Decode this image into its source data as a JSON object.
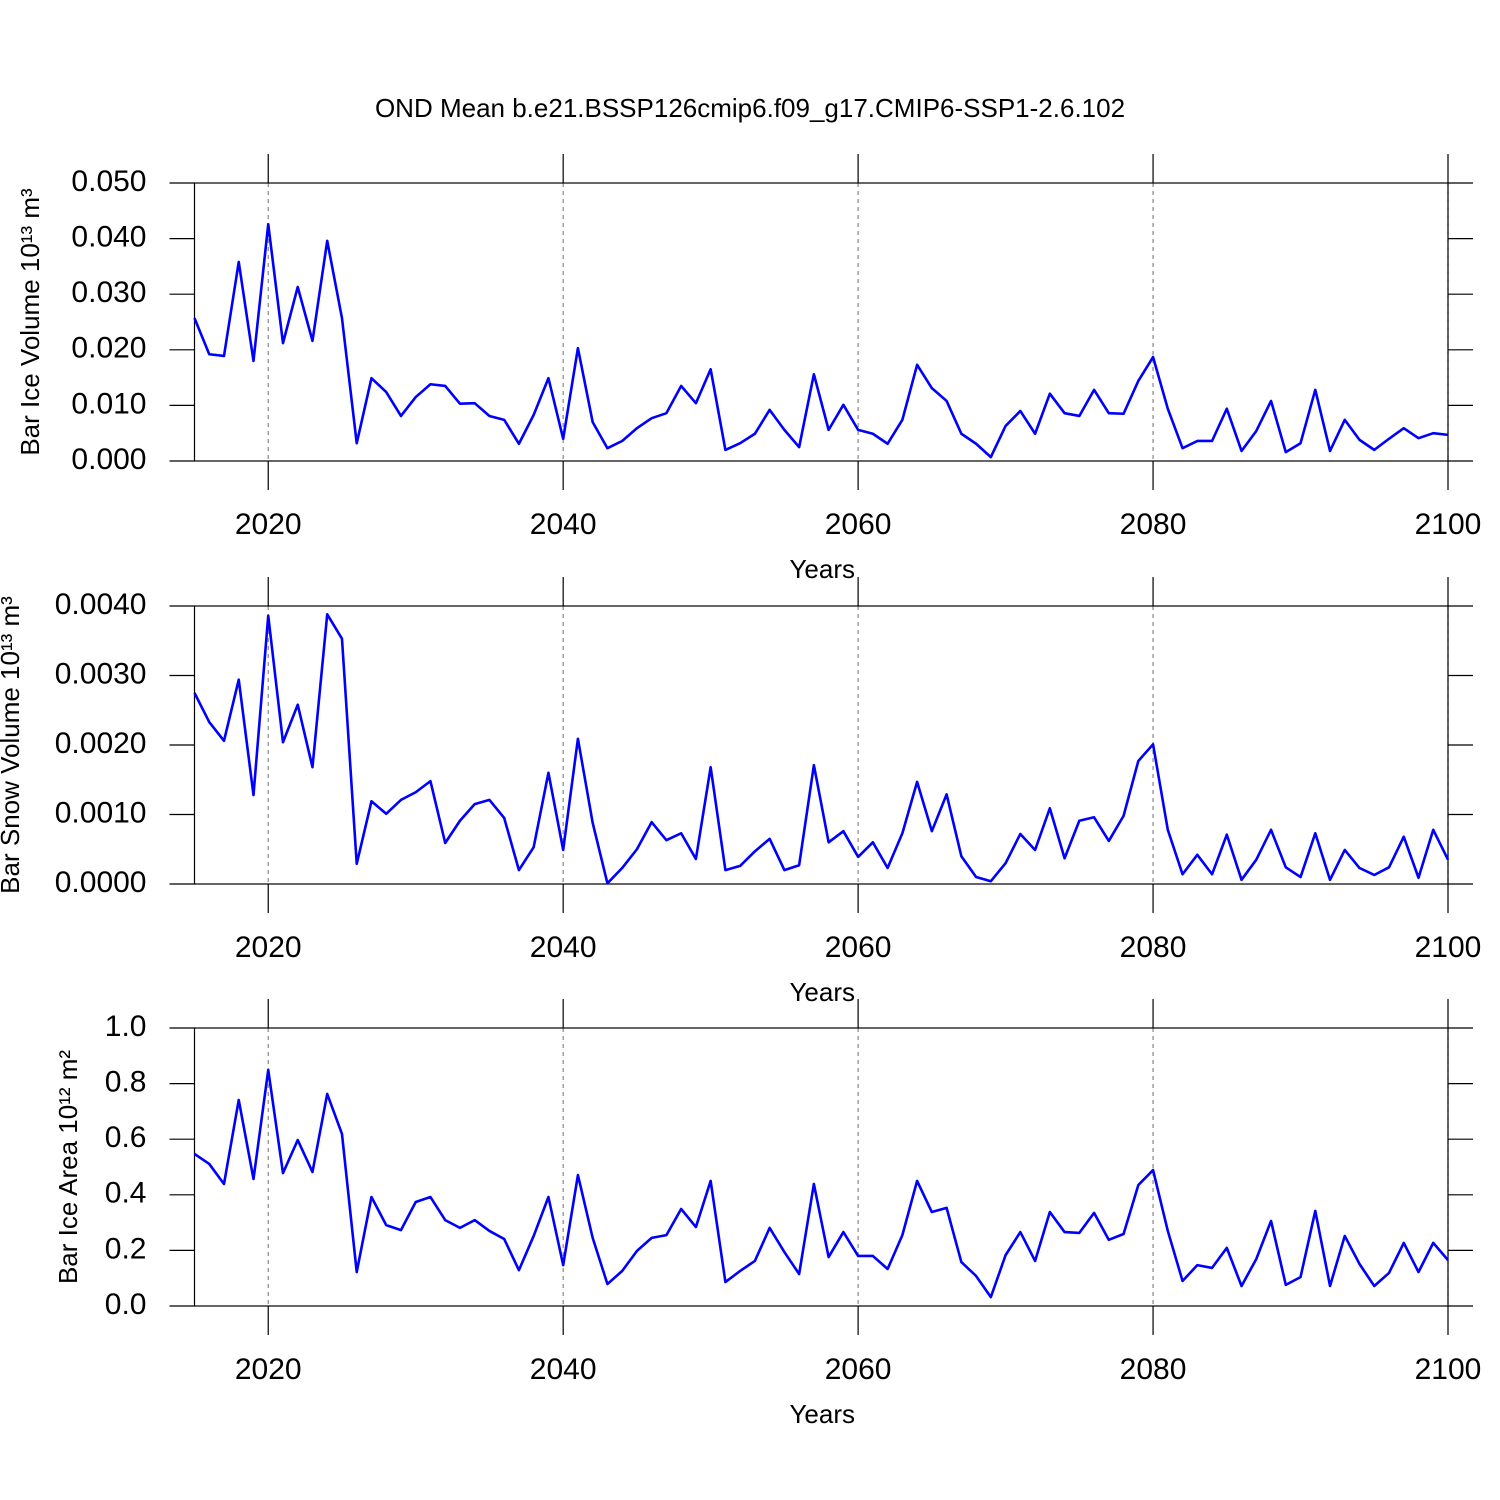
{
  "chart_data": [
    {
      "type": "line",
      "title": "OND Mean b.e21.BSSP126cmip6.f09_g17.CMIP6-SSP1-2.6.102",
      "xlabel": "Years",
      "ylabel": "Bar Ice Volume 10¹³ m³",
      "x": [
        2015,
        2016,
        2017,
        2018,
        2019,
        2020,
        2021,
        2022,
        2023,
        2024,
        2025,
        2026,
        2027,
        2028,
        2029,
        2030,
        2031,
        2032,
        2033,
        2034,
        2035,
        2036,
        2037,
        2038,
        2039,
        2040,
        2041,
        2042,
        2043,
        2044,
        2045,
        2046,
        2047,
        2048,
        2049,
        2050,
        2051,
        2052,
        2053,
        2054,
        2055,
        2056,
        2057,
        2058,
        2059,
        2060,
        2061,
        2062,
        2063,
        2064,
        2065,
        2066,
        2067,
        2068,
        2069,
        2070,
        2071,
        2072,
        2073,
        2074,
        2075,
        2076,
        2077,
        2078,
        2079,
        2080,
        2081,
        2082,
        2083,
        2084,
        2085,
        2086,
        2087,
        2088,
        2089,
        2090,
        2091,
        2092,
        2093,
        2094,
        2095,
        2096,
        2097,
        2098,
        2099,
        2100
      ],
      "values": [
        0.0257,
        0.0192,
        0.0189,
        0.0358,
        0.018,
        0.0426,
        0.0212,
        0.0313,
        0.0216,
        0.0396,
        0.0257,
        0.0032,
        0.0149,
        0.0124,
        0.0081,
        0.0115,
        0.0138,
        0.0135,
        0.0103,
        0.0104,
        0.0081,
        0.0074,
        0.0031,
        0.0083,
        0.0149,
        0.004,
        0.0203,
        0.007,
        0.0023,
        0.0036,
        0.0059,
        0.0077,
        0.0086,
        0.0135,
        0.0104,
        0.0165,
        0.002,
        0.0032,
        0.0049,
        0.0092,
        0.0056,
        0.0025,
        0.0156,
        0.0056,
        0.0101,
        0.0056,
        0.0049,
        0.0031,
        0.0074,
        0.0173,
        0.0131,
        0.0108,
        0.0049,
        0.0031,
        0.0007,
        0.0063,
        0.009,
        0.0049,
        0.0121,
        0.0086,
        0.0081,
        0.0128,
        0.0086,
        0.0085,
        0.0144,
        0.0187,
        0.0094,
        0.0023,
        0.0036,
        0.0036,
        0.0094,
        0.0018,
        0.0054,
        0.0108,
        0.0016,
        0.0032,
        0.0128,
        0.0018,
        0.0074,
        0.0038,
        0.002,
        0.004,
        0.0059,
        0.0041,
        0.005,
        0.0047
      ],
      "color": "#0000ff",
      "xlim": [
        2015,
        2100
      ],
      "xticks": [
        2020,
        2040,
        2060,
        2080,
        2100
      ],
      "ylim": [
        0,
        0.05
      ],
      "yticks": [
        {
          "value": 0,
          "label": "0.000"
        },
        {
          "value": 0.01,
          "label": "0.010"
        },
        {
          "value": 0.02,
          "label": "0.020"
        },
        {
          "value": 0.03,
          "label": "0.030"
        },
        {
          "value": 0.04,
          "label": "0.040"
        },
        {
          "value": 0.05,
          "label": "0.050"
        }
      ],
      "grid": "x"
    },
    {
      "type": "line",
      "xlabel": "Years",
      "ylabel": "Bar Snow Volume 10¹³ m³",
      "x": [
        2015,
        2016,
        2017,
        2018,
        2019,
        2020,
        2021,
        2022,
        2023,
        2024,
        2025,
        2026,
        2027,
        2028,
        2029,
        2030,
        2031,
        2032,
        2033,
        2034,
        2035,
        2036,
        2037,
        2038,
        2039,
        2040,
        2041,
        2042,
        2043,
        2044,
        2045,
        2046,
        2047,
        2048,
        2049,
        2050,
        2051,
        2052,
        2053,
        2054,
        2055,
        2056,
        2057,
        2058,
        2059,
        2060,
        2061,
        2062,
        2063,
        2064,
        2065,
        2066,
        2067,
        2068,
        2069,
        2070,
        2071,
        2072,
        2073,
        2074,
        2075,
        2076,
        2077,
        2078,
        2079,
        2080,
        2081,
        2082,
        2083,
        2084,
        2085,
        2086,
        2087,
        2088,
        2089,
        2090,
        2091,
        2092,
        2093,
        2094,
        2095,
        2096,
        2097,
        2098,
        2099,
        2100
      ],
      "values": [
        0.00275,
        0.00233,
        0.00206,
        0.00294,
        0.00128,
        0.00386,
        0.00204,
        0.00258,
        0.00168,
        0.00388,
        0.00353,
        0.00029,
        0.00119,
        0.00101,
        0.00121,
        0.00132,
        0.00148,
        0.00059,
        0.00091,
        0.00115,
        0.00121,
        0.00095,
        0.0002,
        0.00053,
        0.0016,
        0.00049,
        0.00209,
        0.00088,
        1e-05,
        0.00023,
        0.0005,
        0.00089,
        0.00063,
        0.00073,
        0.00036,
        0.00168,
        0.0002,
        0.00026,
        0.00047,
        0.00065,
        0.0002,
        0.00027,
        0.00171,
        0.0006,
        0.00076,
        0.00039,
        0.0006,
        0.00023,
        0.00073,
        0.00147,
        0.00076,
        0.00129,
        0.0004,
        0.0001,
        4e-05,
        0.0003,
        0.00072,
        0.00049,
        0.00109,
        0.00037,
        0.00091,
        0.00096,
        0.00062,
        0.00098,
        0.00177,
        0.00201,
        0.00078,
        0.00014,
        0.00042,
        0.00014,
        0.00071,
        6e-05,
        0.00035,
        0.00078,
        0.00024,
        0.0001,
        0.00073,
        6e-05,
        0.00049,
        0.00023,
        0.00013,
        0.00024,
        0.00068,
        9e-05,
        0.00078,
        0.00035
      ],
      "color": "#0000ff",
      "xlim": [
        2015,
        2100
      ],
      "xticks": [
        2020,
        2040,
        2060,
        2080,
        2100
      ],
      "ylim": [
        0,
        0.004
      ],
      "yticks": [
        {
          "value": 0,
          "label": "0.0000"
        },
        {
          "value": 0.001,
          "label": "0.0010"
        },
        {
          "value": 0.002,
          "label": "0.0020"
        },
        {
          "value": 0.003,
          "label": "0.0030"
        },
        {
          "value": 0.004,
          "label": "0.0040"
        }
      ],
      "grid": "x"
    },
    {
      "type": "line",
      "xlabel": "Years",
      "ylabel": "Bar Ice Area 10¹² m²",
      "x": [
        2015,
        2016,
        2017,
        2018,
        2019,
        2020,
        2021,
        2022,
        2023,
        2024,
        2025,
        2026,
        2027,
        2028,
        2029,
        2030,
        2031,
        2032,
        2033,
        2034,
        2035,
        2036,
        2037,
        2038,
        2039,
        2040,
        2041,
        2042,
        2043,
        2044,
        2045,
        2046,
        2047,
        2048,
        2049,
        2050,
        2051,
        2052,
        2053,
        2054,
        2055,
        2056,
        2057,
        2058,
        2059,
        2060,
        2061,
        2062,
        2063,
        2064,
        2065,
        2066,
        2067,
        2068,
        2069,
        2070,
        2071,
        2072,
        2073,
        2074,
        2075,
        2076,
        2077,
        2078,
        2079,
        2080,
        2081,
        2082,
        2083,
        2084,
        2085,
        2086,
        2087,
        2088,
        2089,
        2090,
        2091,
        2092,
        2093,
        2094,
        2095,
        2096,
        2097,
        2098,
        2099,
        2100
      ],
      "values": [
        0.547,
        0.511,
        0.439,
        0.741,
        0.457,
        0.849,
        0.478,
        0.597,
        0.482,
        0.763,
        0.619,
        0.122,
        0.392,
        0.291,
        0.273,
        0.374,
        0.392,
        0.309,
        0.281,
        0.309,
        0.27,
        0.241,
        0.129,
        0.252,
        0.392,
        0.147,
        0.471,
        0.245,
        0.079,
        0.126,
        0.198,
        0.245,
        0.255,
        0.349,
        0.284,
        0.45,
        0.086,
        0.126,
        0.162,
        0.281,
        0.194,
        0.115,
        0.439,
        0.176,
        0.266,
        0.18,
        0.18,
        0.133,
        0.255,
        0.45,
        0.338,
        0.353,
        0.158,
        0.108,
        0.032,
        0.183,
        0.266,
        0.162,
        0.338,
        0.266,
        0.263,
        0.335,
        0.238,
        0.259,
        0.435,
        0.489,
        0.27,
        0.09,
        0.147,
        0.137,
        0.209,
        0.072,
        0.169,
        0.306,
        0.076,
        0.104,
        0.342,
        0.072,
        0.252,
        0.151,
        0.072,
        0.119,
        0.227,
        0.122,
        0.227,
        0.165
      ],
      "color": "#0000ff",
      "xlim": [
        2015,
        2100
      ],
      "xticks": [
        2020,
        2040,
        2060,
        2080,
        2100
      ],
      "ylim": [
        0,
        1
      ],
      "yticks": [
        {
          "value": 0,
          "label": "0.0"
        },
        0.2,
        0.4,
        0.6,
        0.8,
        {
          "value": 1,
          "label": "1.0"
        }
      ],
      "grid": "x"
    }
  ]
}
